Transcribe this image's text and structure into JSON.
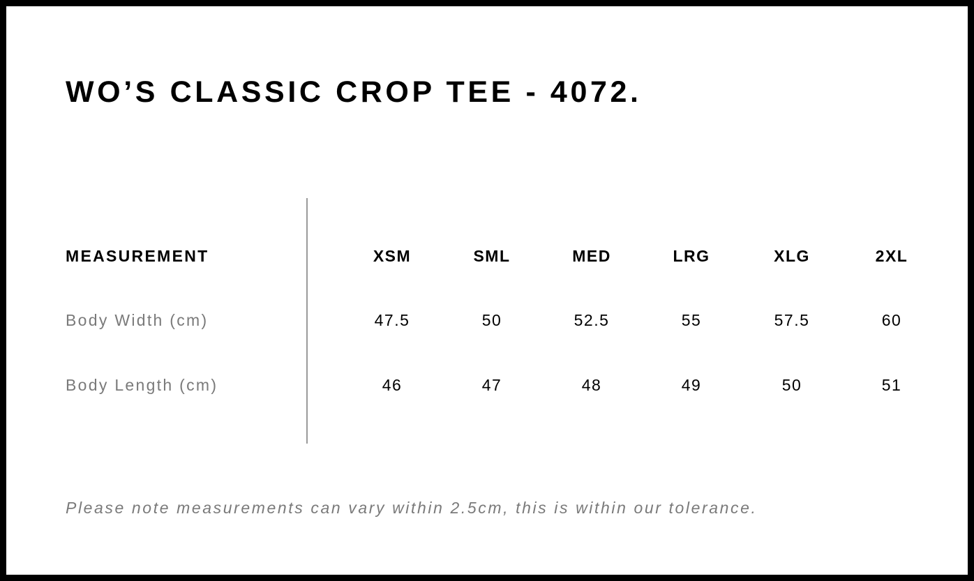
{
  "title": "WO’S CLASSIC CROP TEE - 4072.",
  "table": {
    "header_label": "MEASUREMENT",
    "sizes": [
      "XSM",
      "SML",
      "MED",
      "LRG",
      "XLG",
      "2XL"
    ],
    "rows": [
      {
        "label": "Body Width (cm)",
        "values": [
          "47.5",
          "50",
          "52.5",
          "55",
          "57.5",
          "60"
        ]
      },
      {
        "label": "Body Length (cm)",
        "values": [
          "46",
          "47",
          "48",
          "49",
          "50",
          "51"
        ]
      }
    ]
  },
  "note": "Please note measurements can vary within 2.5cm, this is within our tolerance."
}
